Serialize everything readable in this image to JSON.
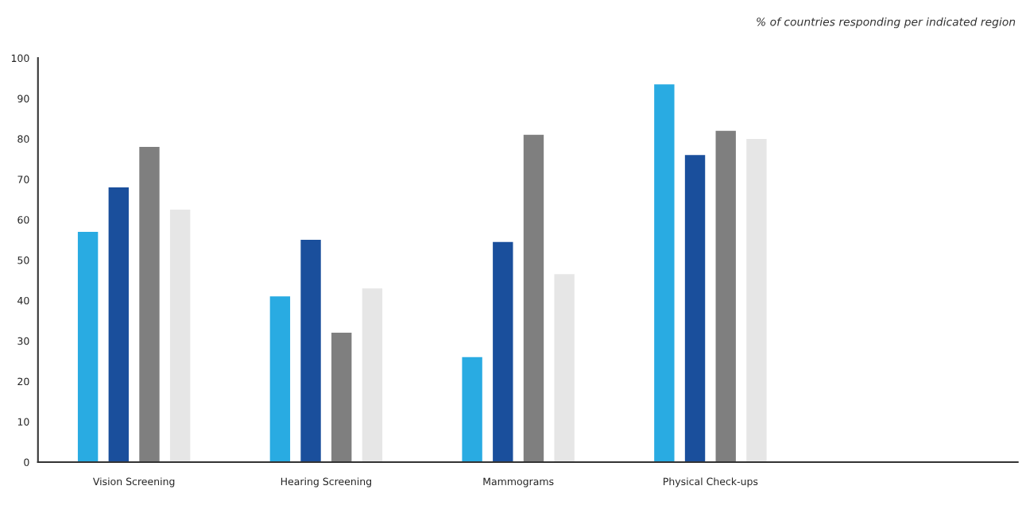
{
  "chart_data": {
    "type": "bar",
    "categories": [
      "Vision Screening",
      "Hearing Screening",
      "Mammograms",
      "Physical Check-ups",
      null
    ],
    "series": [
      {
        "color": "#29abe2",
        "values": [
          57,
          41,
          26,
          93.5,
          null
        ]
      },
      {
        "color": "#1a4f9c",
        "values": [
          68,
          55,
          54.5,
          76,
          null
        ]
      },
      {
        "color": "#7f7f7f",
        "values": [
          78,
          32,
          81,
          82,
          null
        ]
      },
      {
        "color": "#e6e6e6",
        "values": [
          62.5,
          43,
          46.5,
          80,
          null
        ]
      }
    ],
    "ylim": [
      0,
      100
    ],
    "yticks": [
      0,
      10,
      20,
      30,
      40,
      50,
      60,
      70,
      80,
      90,
      100
    ],
    "annotations": [
      "% of countries responding per indicated region"
    ],
    "grid": false,
    "legend": false
  }
}
